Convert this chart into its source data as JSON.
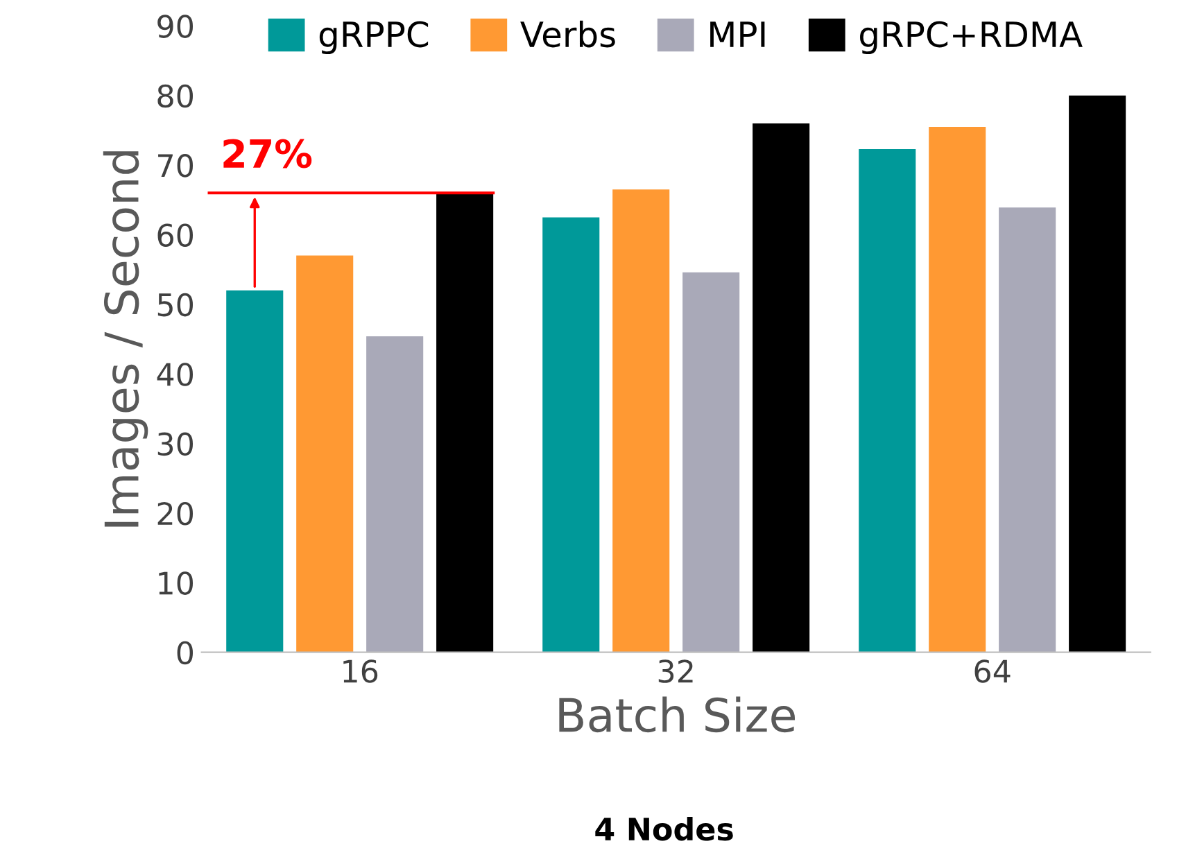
{
  "chart_data": {
    "type": "bar",
    "title": "4 Nodes",
    "xlabel": "Batch Size",
    "ylabel": "Images / Second",
    "categories": [
      "16",
      "32",
      "64"
    ],
    "series": [
      {
        "name": "gRPPC",
        "color": "#009999",
        "values": [
          52,
          62.5,
          72.3
        ]
      },
      {
        "name": "Verbs",
        "color": "#ff9933",
        "values": [
          57,
          66.5,
          75.5
        ]
      },
      {
        "name": "MPI",
        "color": "#a9a9b8",
        "values": [
          45.4,
          54.6,
          63.9
        ]
      },
      {
        "name": "gRPC+RDMA",
        "color": "#000000",
        "values": [
          66,
          76,
          80
        ]
      }
    ],
    "ylim": [
      0,
      90
    ],
    "yticks": [
      0,
      10,
      20,
      30,
      40,
      50,
      60,
      70,
      80,
      90
    ],
    "grid": false,
    "legend": "top",
    "ref_lines": [
      {
        "axis": "y",
        "value": 66,
        "color": "#ff0000"
      }
    ],
    "annotations": [
      {
        "text": "27%",
        "x": "16",
        "y": 66
      }
    ]
  }
}
